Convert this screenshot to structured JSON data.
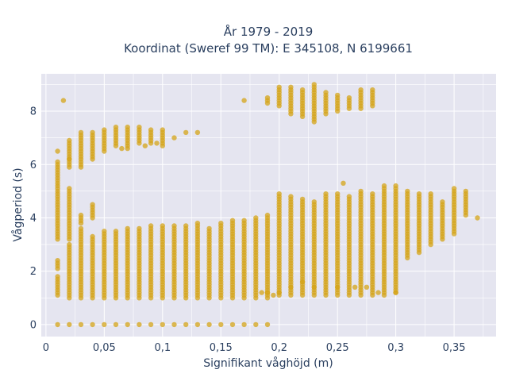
{
  "chart_data": {
    "type": "scatter",
    "title_line1": "År 1979 - 2019",
    "title_line2": "Koordinat (Sweref 99 TM): E 345108, N 6199661",
    "xlabel": "Signifikant våghöjd (m)",
    "ylabel": "Vågperiod (s)",
    "xlim": [
      -0.004,
      0.386
    ],
    "ylim": [
      -0.45,
      9.4
    ],
    "x_ticks": [
      0,
      0.05,
      0.1,
      0.15,
      0.2,
      0.25,
      0.3,
      0.35
    ],
    "x_tick_labels": [
      "0",
      "0,05",
      "0,1",
      "0,15",
      "0,2",
      "0,25",
      "0,3",
      "0,35"
    ],
    "y_ticks": [
      0,
      2,
      4,
      6,
      8
    ],
    "y_tick_labels": [
      "0",
      "2",
      "4",
      "6",
      "8"
    ],
    "grid": true,
    "colors": {
      "marker": "#d4a419",
      "plot_bg": "#e5e5f0",
      "grid": "#ffffff"
    },
    "columns": [
      {
        "x": 0.01,
        "bands": [
          [
            0,
            0
          ],
          [
            1.1,
            1.8
          ],
          [
            2.1,
            2.4
          ],
          [
            3.2,
            6.1
          ],
          [
            6.5,
            6.5
          ]
        ]
      },
      {
        "x": 0.02,
        "bands": [
          [
            0,
            0
          ],
          [
            1.0,
            3.0
          ],
          [
            3.2,
            5.1
          ],
          [
            5.9,
            6.9
          ]
        ]
      },
      {
        "x": 0.03,
        "bands": [
          [
            0,
            0
          ],
          [
            1.0,
            3.6
          ],
          [
            3.8,
            4.1
          ],
          [
            5.9,
            7.2
          ]
        ]
      },
      {
        "x": 0.04,
        "bands": [
          [
            0,
            0
          ],
          [
            1.0,
            3.3
          ],
          [
            4.0,
            4.5
          ],
          [
            6.2,
            7.2
          ]
        ]
      },
      {
        "x": 0.05,
        "bands": [
          [
            0,
            0
          ],
          [
            1.0,
            3.5
          ],
          [
            6.5,
            7.3
          ]
        ]
      },
      {
        "x": 0.06,
        "bands": [
          [
            0,
            0
          ],
          [
            1.0,
            3.5
          ],
          [
            6.7,
            7.4
          ]
        ]
      },
      {
        "x": 0.07,
        "bands": [
          [
            0,
            0
          ],
          [
            1.0,
            3.6
          ],
          [
            6.6,
            7.4
          ]
        ]
      },
      {
        "x": 0.08,
        "bands": [
          [
            0,
            0
          ],
          [
            1.0,
            3.6
          ],
          [
            6.8,
            7.4
          ]
        ]
      },
      {
        "x": 0.09,
        "bands": [
          [
            0,
            0
          ],
          [
            1.0,
            3.7
          ],
          [
            6.8,
            7.3
          ]
        ]
      },
      {
        "x": 0.1,
        "bands": [
          [
            0,
            0
          ],
          [
            1.0,
            3.7
          ],
          [
            6.7,
            7.3
          ]
        ]
      },
      {
        "x": 0.11,
        "bands": [
          [
            0,
            0
          ],
          [
            1.0,
            3.7
          ],
          [
            7.0,
            7.0
          ]
        ]
      },
      {
        "x": 0.12,
        "bands": [
          [
            0,
            0
          ],
          [
            1.0,
            3.7
          ],
          [
            7.2,
            7.2
          ]
        ]
      },
      {
        "x": 0.13,
        "bands": [
          [
            0,
            0
          ],
          [
            1.0,
            3.8
          ],
          [
            7.2,
            7.2
          ]
        ]
      },
      {
        "x": 0.14,
        "bands": [
          [
            0,
            0
          ],
          [
            1.0,
            3.6
          ]
        ]
      },
      {
        "x": 0.15,
        "bands": [
          [
            0,
            0
          ],
          [
            1.0,
            3.8
          ]
        ]
      },
      {
        "x": 0.16,
        "bands": [
          [
            0,
            0
          ],
          [
            1.0,
            3.9
          ]
        ]
      },
      {
        "x": 0.17,
        "bands": [
          [
            0,
            0
          ],
          [
            1.0,
            3.9
          ],
          [
            8.4,
            8.4
          ]
        ]
      },
      {
        "x": 0.18,
        "bands": [
          [
            0,
            0
          ],
          [
            1.0,
            4.0
          ]
        ]
      },
      {
        "x": 0.19,
        "bands": [
          [
            0,
            0
          ],
          [
            1.0,
            4.1
          ],
          [
            8.3,
            8.5
          ]
        ]
      },
      {
        "x": 0.2,
        "bands": [
          [
            1.1,
            4.9
          ],
          [
            8.2,
            8.9
          ]
        ]
      },
      {
        "x": 0.21,
        "bands": [
          [
            1.1,
            4.8
          ],
          [
            7.9,
            8.9
          ]
        ]
      },
      {
        "x": 0.22,
        "bands": [
          [
            1.1,
            4.7
          ],
          [
            7.8,
            8.8
          ]
        ]
      },
      {
        "x": 0.23,
        "bands": [
          [
            1.1,
            4.6
          ],
          [
            7.6,
            9.0
          ]
        ]
      },
      {
        "x": 0.24,
        "bands": [
          [
            1.1,
            4.9
          ],
          [
            7.9,
            8.7
          ]
        ]
      },
      {
        "x": 0.25,
        "bands": [
          [
            1.1,
            4.9
          ],
          [
            8.0,
            8.6
          ]
        ]
      },
      {
        "x": 0.26,
        "bands": [
          [
            1.1,
            4.8
          ],
          [
            8.1,
            8.5
          ]
        ]
      },
      {
        "x": 0.27,
        "bands": [
          [
            1.1,
            5.0
          ],
          [
            8.1,
            8.8
          ]
        ]
      },
      {
        "x": 0.28,
        "bands": [
          [
            1.1,
            4.9
          ],
          [
            8.2,
            8.8
          ]
        ]
      },
      {
        "x": 0.29,
        "bands": [
          [
            1.1,
            5.2
          ]
        ]
      },
      {
        "x": 0.3,
        "bands": [
          [
            1.2,
            5.2
          ]
        ]
      },
      {
        "x": 0.31,
        "bands": [
          [
            2.5,
            5.0
          ]
        ]
      },
      {
        "x": 0.32,
        "bands": [
          [
            2.7,
            4.9
          ]
        ]
      },
      {
        "x": 0.33,
        "bands": [
          [
            3.0,
            4.9
          ]
        ]
      },
      {
        "x": 0.34,
        "bands": [
          [
            3.2,
            4.6
          ]
        ]
      },
      {
        "x": 0.35,
        "bands": [
          [
            3.4,
            5.1
          ]
        ]
      },
      {
        "x": 0.36,
        "bands": [
          [
            4.1,
            5.0
          ]
        ]
      },
      {
        "x": 0.37,
        "bands": [
          [
            4.0,
            4.0
          ]
        ]
      }
    ],
    "extra_points": [
      [
        0.015,
        8.4
      ],
      [
        0.02,
        6.2
      ],
      [
        0.065,
        6.6
      ],
      [
        0.085,
        6.7
      ],
      [
        0.095,
        6.8
      ],
      [
        0.255,
        5.3
      ],
      [
        0.275,
        1.4
      ],
      [
        0.25,
        1.4
      ],
      [
        0.265,
        1.4
      ],
      [
        0.285,
        1.2
      ],
      [
        0.3,
        1.2
      ],
      [
        0.23,
        1.4
      ],
      [
        0.22,
        1.6
      ],
      [
        0.21,
        1.4
      ],
      [
        0.195,
        1.1
      ],
      [
        0.2,
        1.2
      ],
      [
        0.185,
        1.2
      ],
      [
        0.19,
        1.2
      ]
    ]
  }
}
